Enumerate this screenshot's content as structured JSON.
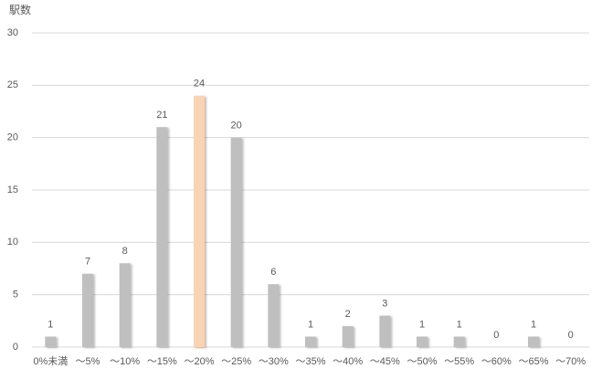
{
  "chart_data": {
    "type": "bar",
    "y_axis_label": "駅数",
    "categories": [
      "0%未満",
      "～5%",
      "～10%",
      "～15%",
      "～20%",
      "～25%",
      "～30%",
      "～35%",
      "～40%",
      "～45%",
      "～50%",
      "～55%",
      "～60%",
      "～65%",
      "～70%"
    ],
    "values": [
      1,
      7,
      8,
      21,
      24,
      20,
      6,
      1,
      2,
      3,
      1,
      1,
      0,
      1,
      0
    ],
    "colors": [
      "#bfbfbf",
      "#bfbfbf",
      "#bfbfbf",
      "#bfbfbf",
      "#f8d4b4",
      "#bfbfbf",
      "#bfbfbf",
      "#bfbfbf",
      "#bfbfbf",
      "#bfbfbf",
      "#bfbfbf",
      "#bfbfbf",
      "#bfbfbf",
      "#bfbfbf",
      "#bfbfbf"
    ],
    "ylim": [
      0,
      30
    ],
    "yticks": [
      0,
      5,
      10,
      15,
      20,
      25,
      30
    ],
    "grid": true,
    "data_labels": true
  }
}
